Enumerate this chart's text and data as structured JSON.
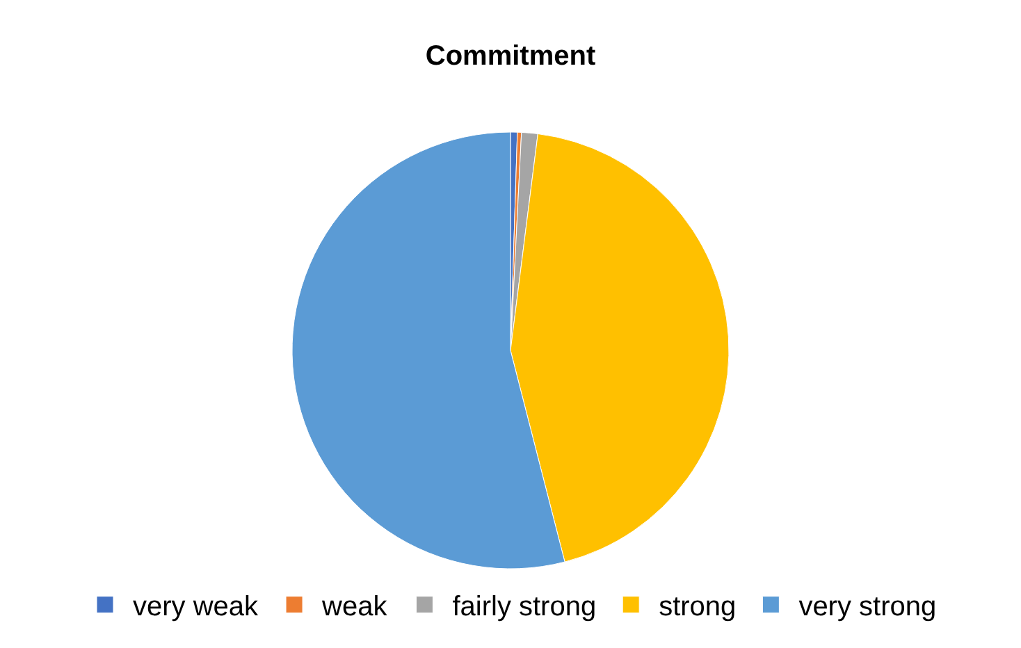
{
  "chart_data": {
    "type": "pie",
    "title": "Commitment",
    "categories": [
      "very weak",
      "weak",
      "fairly strong",
      "strong",
      "very strong"
    ],
    "values": [
      0.5,
      0.3,
      1.2,
      44,
      54
    ],
    "colors": [
      "#4472c4",
      "#ed7d31",
      "#a5a5a5",
      "#ffc000",
      "#5b9bd5"
    ],
    "legend": "bottom"
  }
}
